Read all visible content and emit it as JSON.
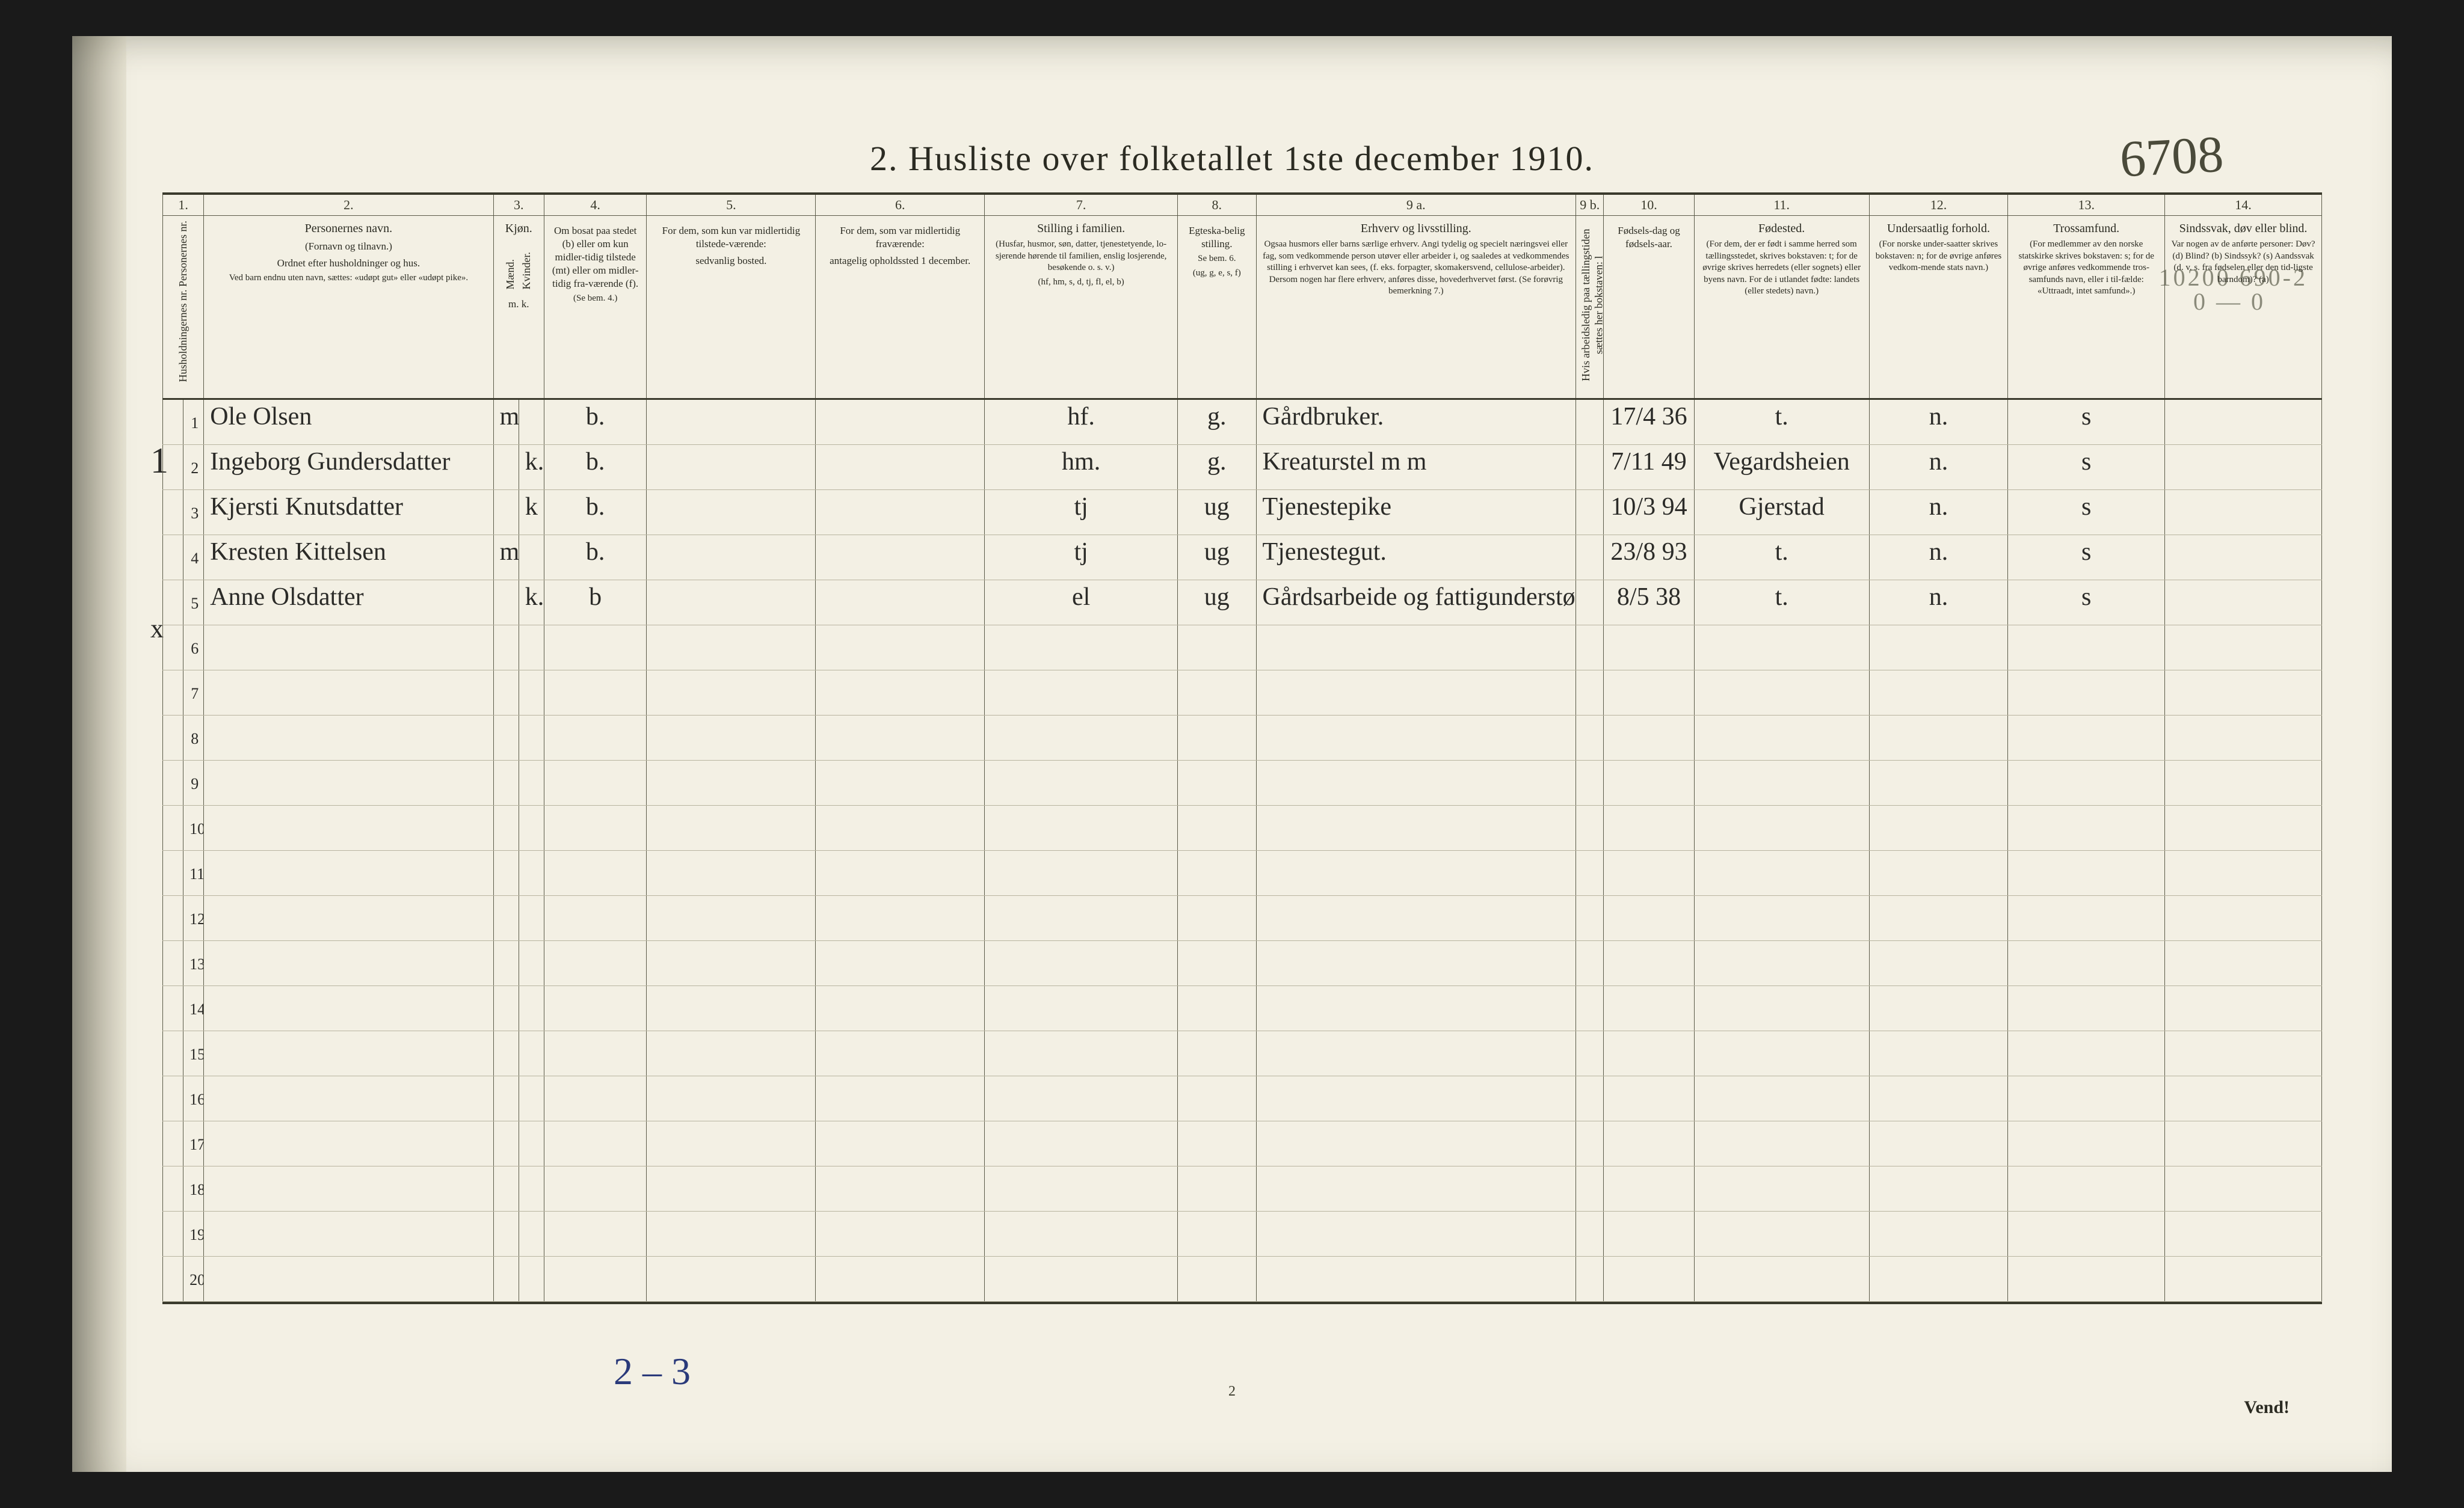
{
  "title": "2.  Husliste over folketallet 1ste december 1910.",
  "annot_topright": "6708",
  "annot_pencil_line1": "10200  690-2",
  "annot_pencil_line2": "0 — 0",
  "annot_bottom": "2 – 3",
  "annot_left1": "1",
  "annot_leftx": "x",
  "footer_pagenum": "2",
  "footer_vend": "Vend!",
  "colnums": [
    "1.",
    "2.",
    "3.",
    "4.",
    "5.",
    "6.",
    "7.",
    "8.",
    "9 a.",
    "9 b.",
    "10.",
    "11.",
    "12.",
    "13.",
    "14."
  ],
  "headers": {
    "c1": "Husholdningernes nr.\nPersonernes nr.",
    "c2_main": "Personernes navn.",
    "c2_sub1": "(Fornavn og tilnavn.)",
    "c2_sub2": "Ordnet efter husholdninger og hus.",
    "c2_sub3": "Ved barn endnu uten navn, sættes: «udøpt gut» eller «udøpt pike».",
    "c3_main": "Kjøn.",
    "c3a": "Mænd.",
    "c3b": "Kvinder.",
    "c3_foot": "m.  k.",
    "c4_main": "Om bosat paa stedet (b) eller om kun midler-tidig tilstede (mt) eller om midler-tidig fra-værende (f).",
    "c4_sub": "(Se bem. 4.)",
    "c5_main": "For dem, som kun var midlertidig tilstede-værende:",
    "c5_sub": "sedvanlig bosted.",
    "c6_main": "For dem, som var midlertidig fraværende:",
    "c6_sub": "antagelig opholdssted 1 december.",
    "c7_main": "Stilling i familien.",
    "c7_sub1": "(Husfar, husmor, søn, datter, tjenestetyende, lo-sjerende hørende til familien, enslig losjerende, besøkende o. s. v.)",
    "c7_sub2": "(hf, hm, s, d, tj, fl, el, b)",
    "c8_main": "Egteska-belig stilling.",
    "c8_sub1": "Se bem. 6.",
    "c8_sub2": "(ug, g, e, s, f)",
    "c9a_main": "Erhverv og livsstilling.",
    "c9a_sub": "Ogsaa husmors eller barns særlige erhverv. Angi tydelig og specielt næringsvei eller fag, som vedkommende person utøver eller arbeider i, og saaledes at vedkommendes stilling i erhvervet kan sees, (f. eks. forpagter, skomakersvend, cellulose-arbeider). Dersom nogen har flere erhverv, anføres disse, hovederhvervet først. (Se forøvrig bemerkning 7.)",
    "c9b": "Hvis arbeidsledig paa tællingstiden sættes her bokstaven: l",
    "c10_main": "Fødsels-dag og fødsels-aar.",
    "c11_main": "Fødested.",
    "c11_sub": "(For dem, der er født i samme herred som tællingsstedet, skrives bokstaven: t; for de øvrige skrives herredets (eller sognets) eller byens navn. For de i utlandet fødte: landets (eller stedets) navn.)",
    "c12_main": "Undersaatlig forhold.",
    "c12_sub": "(For norske under-saatter skrives bokstaven: n; for de øvrige anføres vedkom-mende stats navn.)",
    "c13_main": "Trossamfund.",
    "c13_sub": "(For medlemmer av den norske statskirke skrives bokstaven: s; for de øvrige anføres vedkommende tros-samfunds navn, eller i til-fælde: «Uttraadt, intet samfund».)",
    "c14_main": "Sindssvak, døv eller blind.",
    "c14_sub": "Var nogen av de anførte personer: Døv? (d) Blind? (b) Sindssyk? (s) Aandssvak (d. v. s. fra fødselen eller den tid-ligste barndom)? (a)"
  },
  "rows": [
    {
      "n": "1",
      "name": "Ole Olsen",
      "mk": "m",
      "b": "b.",
      "c7": "hf.",
      "c8": "g.",
      "c9": "Gårdbruker.",
      "c10": "17/4 36",
      "c11": "t.",
      "c12": "n.",
      "c13": "s"
    },
    {
      "n": "2",
      "name": "Ingeborg Gundersdatter",
      "mk": "k.",
      "b": "b.",
      "c7": "hm.",
      "c8": "g.",
      "c9": "Kreaturstel  m  m",
      "c10": "7/11 49",
      "c11": "Vegardsheien",
      "c12": "n.",
      "c13": "s"
    },
    {
      "n": "3",
      "name": "Kjersti Knutsdatter",
      "mk": "k",
      "b": "b.",
      "c7": "tj",
      "c8": "ug",
      "c9": "Tjenestepike",
      "c10": "10/3 94",
      "c11": "Gjerstad",
      "c12": "n.",
      "c13": "s"
    },
    {
      "n": "4",
      "name": "Kresten Kittelsen",
      "mk": "m",
      "b": "b.",
      "c7": "tj",
      "c8": "ug",
      "c9": "Tjenestegut.",
      "c10": "23/8 93",
      "c11": "t.",
      "c12": "n.",
      "c13": "s"
    },
    {
      "n": "5",
      "name": "Anne Olsdatter",
      "mk": "k.",
      "b": "b",
      "c7": "el",
      "c8": "ug",
      "c9": "Gårdsarbeide og fattigunderstøttet",
      "c10": "8/5 38",
      "c11": "t.",
      "c12": "n.",
      "c13": "s"
    }
  ],
  "empty_rows": [
    "6",
    "7",
    "8",
    "9",
    "10",
    "11",
    "12",
    "13",
    "14",
    "15",
    "16",
    "17",
    "18",
    "19",
    "20"
  ],
  "colors": {
    "paper": "#f3f0e4",
    "ink": "#2b2b22",
    "rule": "#5a5a48",
    "faint_rule": "#b8b4a0",
    "pencil": "#8a8a7a",
    "blue_ink": "#2a3a7a"
  }
}
